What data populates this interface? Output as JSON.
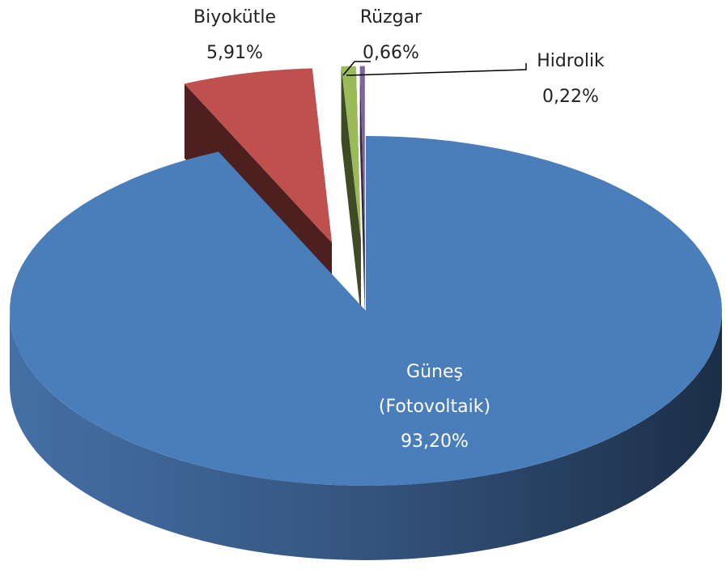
{
  "chart_data": {
    "type": "pie3d",
    "categories": [
      "Güneş (Fotovoltaik)",
      "Biyokütle",
      "Rüzgar",
      "Hidrolik"
    ],
    "values": [
      93.2,
      5.91,
      0.66,
      0.22
    ],
    "value_labels": [
      "93,20%",
      "5,91%",
      "0,66%",
      "0,22%"
    ],
    "colors": [
      "#4a7ebb",
      "#c0504d",
      "#9bbb59",
      "#8064a2"
    ]
  }
}
